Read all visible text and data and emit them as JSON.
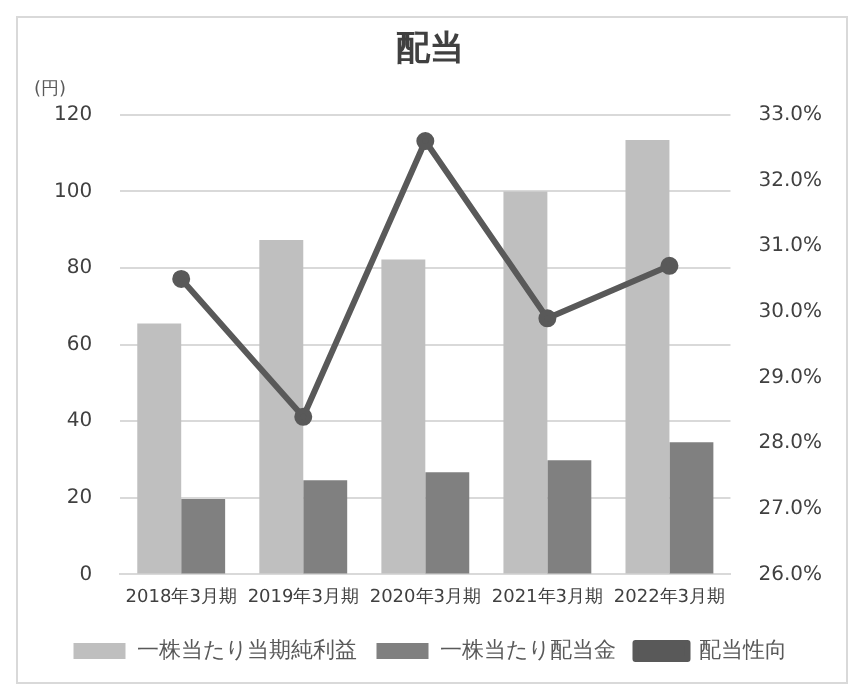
{
  "chart_data": {
    "type": "bar",
    "title": "配当",
    "ylabel": "(円)",
    "categories": [
      "2018年3月期",
      "2019年3月期",
      "2020年3月期",
      "2021年3月期",
      "2022年3月期"
    ],
    "series": [
      {
        "name": "一株当たり当期純利益",
        "color": "#bfbfbf",
        "values": [
          65.5,
          87.3,
          82.2,
          100,
          113.4
        ]
      },
      {
        "name": "一株当たり配当金",
        "color": "#808080",
        "values": [
          19.7,
          24.6,
          26.7,
          29.8,
          34.5
        ]
      },
      {
        "name": "配当性向",
        "type": "line",
        "axis": "y2",
        "color": "#595959",
        "marker": "circle",
        "values": [
          30.5,
          28.4,
          32.6,
          29.9,
          30.7
        ]
      }
    ],
    "ylim": [
      0,
      120
    ],
    "yticks": [
      0,
      20,
      40,
      60,
      80,
      100,
      120
    ],
    "y2lim": [
      26,
      33
    ],
    "y2ticks": [
      {
        "value": 26,
        "label": "26.0%"
      },
      {
        "value": 27,
        "label": "27.0%"
      },
      {
        "value": 28,
        "label": "28.0%"
      },
      {
        "value": 29,
        "label": "29.0%"
      },
      {
        "value": 30,
        "label": "30.0%"
      },
      {
        "value": 31,
        "label": "31.0%"
      },
      {
        "value": 32,
        "label": "32.0%"
      },
      {
        "value": 33,
        "label": "33.0%"
      }
    ],
    "grid": "y",
    "legend": "bottom"
  }
}
